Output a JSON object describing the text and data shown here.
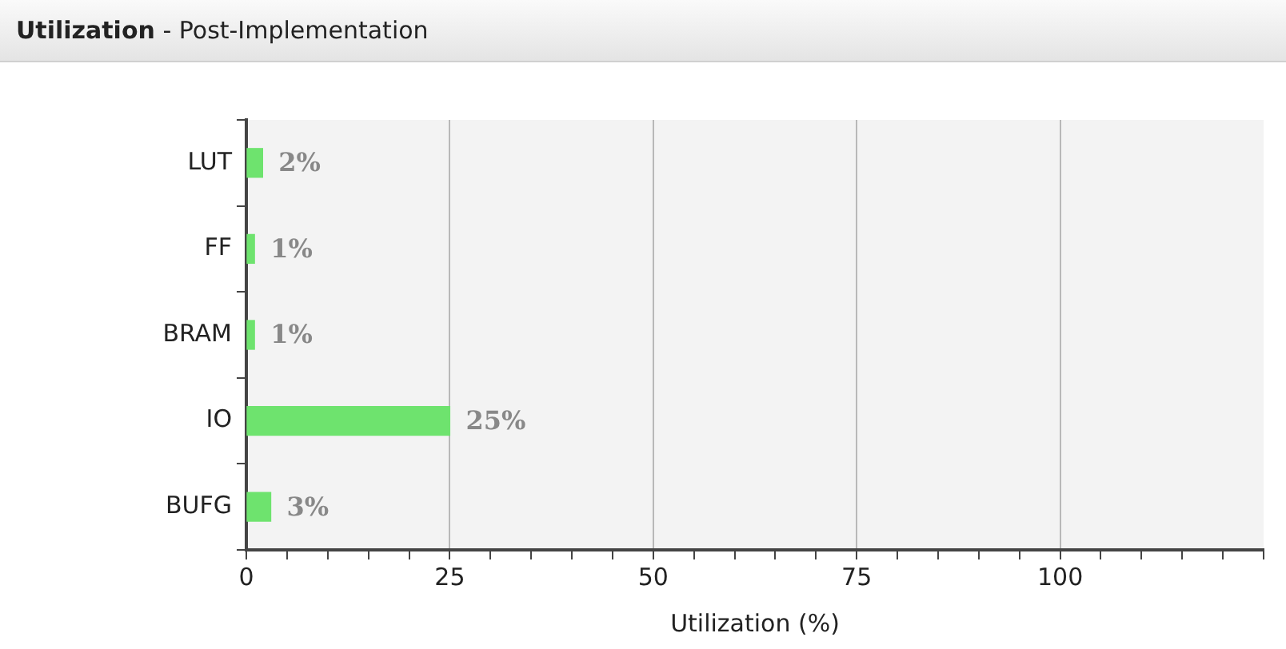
{
  "chart_data": {
    "type": "bar",
    "orientation": "horizontal",
    "title": "Utilization - Post-Implementation",
    "xlabel": "Utilization (%)",
    "categories": [
      "LUT",
      "FF",
      "BRAM",
      "IO",
      "BUFG"
    ],
    "values": [
      2,
      1,
      1,
      25,
      3
    ],
    "value_labels": [
      "2%",
      "1%",
      "1%",
      "25%",
      "3%"
    ],
    "color": "#6ee36e",
    "xlim": [
      0,
      125
    ],
    "xticks": [
      0,
      {
        "value": 5,
        "label": null
      },
      {
        "value": 10,
        "label": null
      },
      {
        "value": 15,
        "label": null
      },
      {
        "value": 20,
        "label": null
      },
      25,
      {
        "value": 30,
        "label": null
      },
      {
        "value": 35,
        "label": null
      },
      {
        "value": 40,
        "label": null
      },
      {
        "value": 45,
        "label": null
      },
      50,
      {
        "value": 55,
        "label": null
      },
      {
        "value": 60,
        "label": null
      },
      {
        "value": 65,
        "label": null
      },
      {
        "value": 70,
        "label": null
      },
      75,
      {
        "value": 80,
        "label": null
      },
      {
        "value": 85,
        "label": null
      },
      {
        "value": 90,
        "label": null
      },
      {
        "value": 95,
        "label": null
      },
      100,
      {
        "value": 105,
        "label": null
      },
      {
        "value": 110,
        "label": null
      },
      {
        "value": 115,
        "label": null
      },
      {
        "value": 120,
        "label": null
      },
      {
        "value": 125,
        "label": null
      }
    ],
    "grid": "x"
  }
}
